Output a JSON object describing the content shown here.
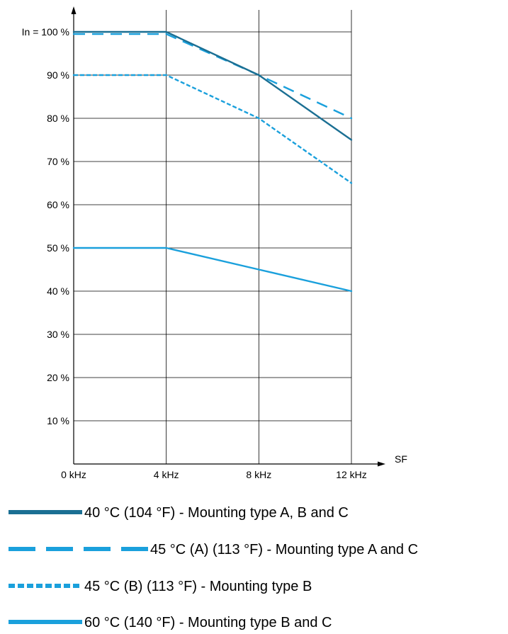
{
  "chart_data": {
    "type": "line",
    "x": [
      0,
      4,
      8,
      12
    ],
    "x_tick_labels": [
      "0 kHz",
      "4 kHz",
      "8 kHz",
      "12 kHz"
    ],
    "xlabel": "SF",
    "ylim": [
      0,
      100
    ],
    "y_ticks": [
      10,
      20,
      30,
      40,
      50,
      60,
      70,
      80,
      90,
      100
    ],
    "y_tick_labels": [
      "10 %",
      "20 %",
      "30 %",
      "40 %",
      "50 %",
      "60 %",
      "70 %",
      "80 %",
      "90 %",
      "In = 100 %"
    ],
    "grid": true,
    "legend_position": "bottom",
    "series": [
      {
        "name": "40 °C (104 °F) - Mounting type A, B and C",
        "values": [
          100,
          100,
          90,
          75
        ],
        "color": "#1b6f93",
        "style": "solid"
      },
      {
        "name": "45 °C (A) (113 °F) - Mounting type A and C",
        "values": [
          99.5,
          99.5,
          90,
          80
        ],
        "color": "#1aa0dc",
        "style": "dashed"
      },
      {
        "name": "45 °C (B) (113 °F) - Mounting type B",
        "values": [
          90,
          90,
          80,
          65
        ],
        "color": "#1aa0dc",
        "style": "dotted"
      },
      {
        "name": "60 °C (140 °F) - Mounting type B and C",
        "values": [
          50,
          50,
          45,
          40
        ],
        "color": "#1aa0dc",
        "style": "solid"
      }
    ]
  }
}
